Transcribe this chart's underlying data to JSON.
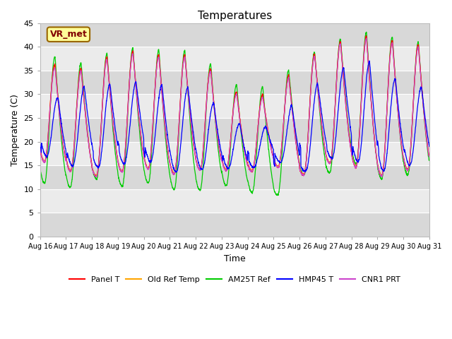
{
  "title": "Temperatures",
  "xlabel": "Time",
  "ylabel": "Temperature (C)",
  "annotation": "VR_met",
  "ylim": [
    0,
    45
  ],
  "yticks": [
    0,
    5,
    10,
    15,
    20,
    25,
    30,
    35,
    40,
    45
  ],
  "xtick_labels": [
    "Aug 16",
    "Aug 17",
    "Aug 18",
    "Aug 19",
    "Aug 20",
    "Aug 21",
    "Aug 22",
    "Aug 23",
    "Aug 24",
    "Aug 25",
    "Aug 26",
    "Aug 27",
    "Aug 28",
    "Aug 29",
    "Aug 30",
    "Aug 31"
  ],
  "legend_entries": [
    "Panel T",
    "Old Ref Temp",
    "AM25T Ref",
    "HMP45 T",
    "CNR1 PRT"
  ],
  "legend_colors": [
    "#ff0000",
    "#ffa500",
    "#00cc00",
    "#0000ff",
    "#cc44cc"
  ],
  "panel_t_color": "#ff0000",
  "old_ref_color": "#ffa500",
  "am25t_color": "#00cc00",
  "hmp45_color": "#0000ff",
  "cnr1_color": "#cc44cc",
  "bg_color": "#ffffff",
  "plot_bg_light": "#ebebeb",
  "plot_bg_dark": "#d8d8d8",
  "grid_color": "#ffffff",
  "annotation_bg": "#ffff99",
  "annotation_border": "#996600",
  "num_days": 15,
  "samples_per_day": 144,
  "day_peaks_panel": [
    40.0,
    33.5,
    37.0,
    38.5,
    39.5,
    37.5,
    39.0,
    32.5,
    29.0,
    30.5,
    36.5,
    40.0,
    42.0,
    42.5,
    40.5
  ],
  "day_troughs_panel": [
    16.0,
    14.0,
    12.5,
    13.5,
    14.5,
    13.0,
    14.0,
    14.0,
    13.5,
    15.0,
    12.5,
    15.5,
    15.0,
    12.5,
    14.0
  ],
  "day_peaks_am25t": [
    41.0,
    35.5,
    37.5,
    39.5,
    40.0,
    39.0,
    39.5,
    34.0,
    30.5,
    32.5,
    37.0,
    40.5,
    42.5,
    43.5,
    41.0
  ],
  "day_troughs_am25t": [
    11.5,
    10.0,
    12.5,
    10.5,
    11.5,
    10.0,
    9.5,
    11.0,
    9.5,
    8.0,
    13.0,
    13.0,
    16.0,
    12.0,
    13.0
  ],
  "day_peaks_hmp45": [
    33.0,
    27.5,
    33.5,
    31.5,
    33.0,
    31.5,
    31.5,
    26.5,
    22.5,
    23.5,
    29.5,
    33.5,
    36.5,
    37.0,
    31.5
  ],
  "day_troughs_hmp45": [
    17.5,
    15.0,
    14.5,
    15.0,
    16.5,
    13.5,
    14.0,
    14.5,
    14.0,
    16.5,
    13.0,
    16.5,
    16.5,
    13.5,
    15.0
  ],
  "day_peaks_cnr1": [
    39.0,
    33.0,
    36.5,
    38.0,
    39.0,
    37.0,
    38.5,
    32.0,
    28.5,
    30.0,
    36.0,
    39.5,
    41.5,
    42.0,
    40.0
  ],
  "day_troughs_cnr1": [
    16.0,
    14.0,
    12.5,
    13.5,
    14.5,
    13.0,
    14.0,
    14.0,
    13.5,
    15.0,
    12.5,
    15.5,
    15.0,
    12.5,
    14.0
  ]
}
